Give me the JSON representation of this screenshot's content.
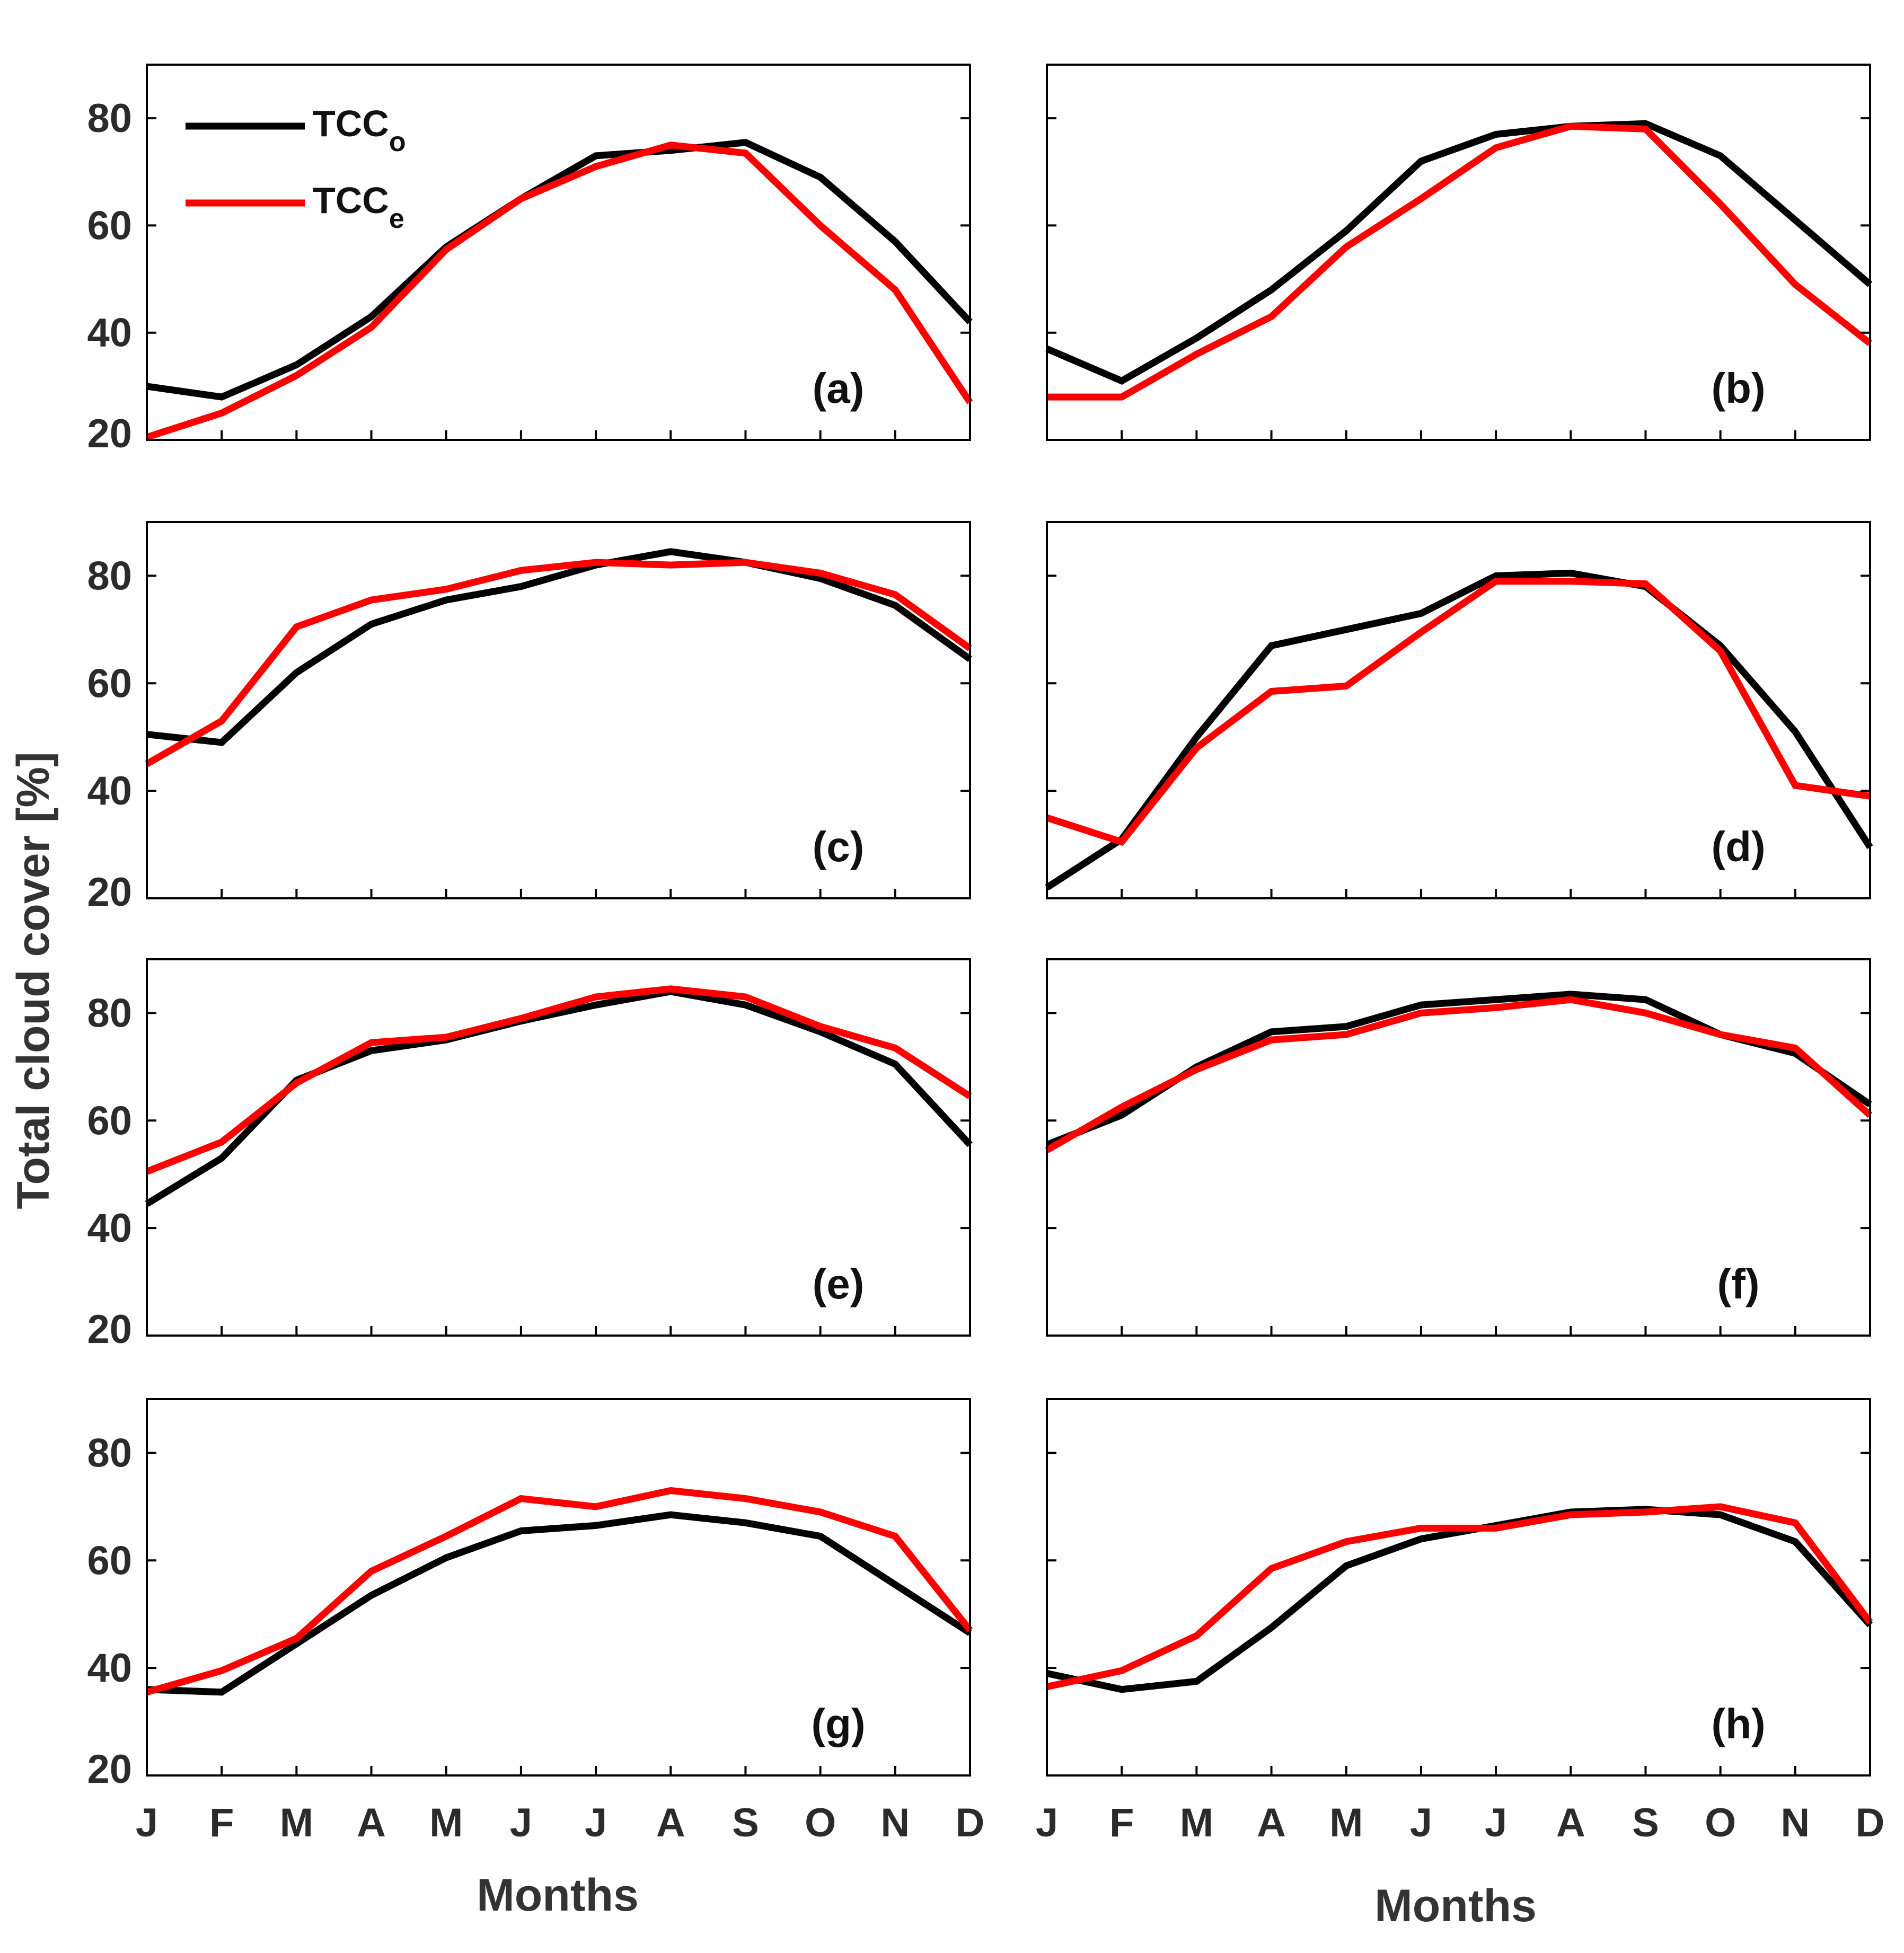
{
  "figure": {
    "ylabel": "Total cloud cover [%]",
    "xlabel": "Months",
    "legend": {
      "position": "top-left of panel (a)",
      "entries": [
        {
          "base": "TCC",
          "sub": "o",
          "color": "#000000"
        },
        {
          "base": "TCC",
          "sub": "e",
          "color": "#ff0000"
        }
      ]
    }
  },
  "colors": {
    "observed": "#000000",
    "estimated": "#ff0000",
    "axes": "#000000"
  },
  "chart_data": [
    {
      "type": "line",
      "label": "(a)",
      "categories": [
        "J",
        "F",
        "M",
        "A",
        "M",
        "J",
        "J",
        "A",
        "S",
        "O",
        "N",
        "D"
      ],
      "ylim": [
        20,
        90
      ],
      "yticks": [
        "20",
        "40",
        "60",
        "80"
      ],
      "series": [
        {
          "name": "TCC_o",
          "values": [
            30,
            28,
            34,
            43,
            56,
            65,
            73,
            74,
            75.5,
            69,
            57,
            42
          ]
        },
        {
          "name": "TCC_e",
          "values": [
            20.5,
            25,
            32,
            41,
            55.5,
            65,
            71,
            75,
            73.5,
            60,
            48,
            27
          ]
        }
      ]
    },
    {
      "type": "line",
      "label": "(b)",
      "categories": [
        "J",
        "F",
        "M",
        "A",
        "M",
        "J",
        "J",
        "A",
        "S",
        "O",
        "N",
        "D"
      ],
      "ylim": [
        20,
        90
      ],
      "yticks": [],
      "series": [
        {
          "name": "TCC_o",
          "values": [
            37,
            31,
            39,
            48,
            59,
            72,
            77,
            78.5,
            79,
            73,
            61,
            49
          ]
        },
        {
          "name": "TCC_e",
          "values": [
            28,
            28,
            36,
            43,
            56,
            65,
            74.5,
            78.5,
            78,
            64,
            49,
            38
          ]
        }
      ]
    },
    {
      "type": "line",
      "label": "(c)",
      "categories": [
        "J",
        "F",
        "M",
        "A",
        "M",
        "J",
        "J",
        "A",
        "S",
        "O",
        "N",
        "D"
      ],
      "ylim": [
        20,
        90
      ],
      "yticks": [
        "20",
        "40",
        "60",
        "80"
      ],
      "series": [
        {
          "name": "TCC_o",
          "values": [
            50.5,
            49,
            62,
            71,
            75.5,
            78,
            82,
            84.5,
            82.5,
            79.5,
            74.5,
            64.5
          ]
        },
        {
          "name": "TCC_e",
          "values": [
            45,
            53,
            70.5,
            75.5,
            77.5,
            81,
            82.5,
            82,
            82.5,
            80.5,
            76.5,
            66.5
          ]
        }
      ]
    },
    {
      "type": "line",
      "label": "(d)",
      "categories": [
        "J",
        "F",
        "M",
        "A",
        "M",
        "J",
        "J",
        "A",
        "S",
        "O",
        "N",
        "D"
      ],
      "ylim": [
        20,
        90
      ],
      "yticks": [],
      "series": [
        {
          "name": "TCC_o",
          "values": [
            22,
            31,
            50,
            67,
            70,
            73,
            80,
            80.5,
            78,
            67,
            51,
            29.5
          ]
        },
        {
          "name": "TCC_e",
          "values": [
            35,
            30.5,
            48,
            58.5,
            59.5,
            69.5,
            79,
            79,
            78.5,
            66,
            41,
            39
          ]
        }
      ]
    },
    {
      "type": "line",
      "label": "(e)",
      "categories": [
        "J",
        "F",
        "M",
        "A",
        "M",
        "J",
        "J",
        "A",
        "S",
        "O",
        "N",
        "D"
      ],
      "ylim": [
        20,
        90
      ],
      "yticks": [
        "20",
        "40",
        "60",
        "80"
      ],
      "series": [
        {
          "name": "TCC_o",
          "values": [
            44.5,
            53,
            67.5,
            73,
            75,
            78.5,
            81.5,
            84,
            81.5,
            76.5,
            70.5,
            55.5
          ]
        },
        {
          "name": "TCC_e",
          "values": [
            50.5,
            56,
            67,
            74.5,
            75.5,
            79,
            83,
            84.5,
            83,
            77.5,
            73.5,
            64.5
          ]
        }
      ]
    },
    {
      "type": "line",
      "label": "(f)",
      "categories": [
        "J",
        "F",
        "M",
        "A",
        "M",
        "J",
        "J",
        "A",
        "S",
        "O",
        "N",
        "D"
      ],
      "ylim": [
        20,
        90
      ],
      "yticks": [],
      "series": [
        {
          "name": "TCC_o",
          "values": [
            55.5,
            61,
            70,
            76.5,
            77.5,
            81.5,
            82.5,
            83.5,
            82.5,
            76,
            72.5,
            63
          ]
        },
        {
          "name": "TCC_e",
          "values": [
            54.5,
            62.5,
            69.5,
            75,
            76,
            80,
            81,
            82.5,
            80,
            76,
            73.5,
            61
          ]
        }
      ]
    },
    {
      "type": "line",
      "label": "(g)",
      "categories": [
        "J",
        "F",
        "M",
        "A",
        "M",
        "J",
        "J",
        "A",
        "S",
        "O",
        "N",
        "D"
      ],
      "ylim": [
        20,
        90
      ],
      "yticks": [
        "20",
        "40",
        "60",
        "80"
      ],
      "series": [
        {
          "name": "TCC_o",
          "values": [
            36,
            35.5,
            44.5,
            53.5,
            60.5,
            65.5,
            66.5,
            68.5,
            67,
            64.5,
            55.5,
            46.5
          ]
        },
        {
          "name": "TCC_e",
          "values": [
            35.5,
            39.5,
            45.5,
            58,
            64.5,
            71.5,
            70,
            73,
            71.5,
            69,
            64.5,
            47
          ]
        }
      ]
    },
    {
      "type": "line",
      "label": "(h)",
      "categories": [
        "J",
        "F",
        "M",
        "A",
        "M",
        "J",
        "J",
        "A",
        "S",
        "O",
        "N",
        "D"
      ],
      "ylim": [
        20,
        90
      ],
      "yticks": [],
      "series": [
        {
          "name": "TCC_o",
          "values": [
            39,
            36,
            37.5,
            47.5,
            59,
            64,
            66.5,
            69,
            69.5,
            68.5,
            63.5,
            48
          ]
        },
        {
          "name": "TCC_e",
          "values": [
            36.5,
            39.5,
            46,
            58.5,
            63.5,
            66,
            66,
            68.5,
            69,
            70,
            67,
            48.5
          ]
        }
      ]
    }
  ]
}
